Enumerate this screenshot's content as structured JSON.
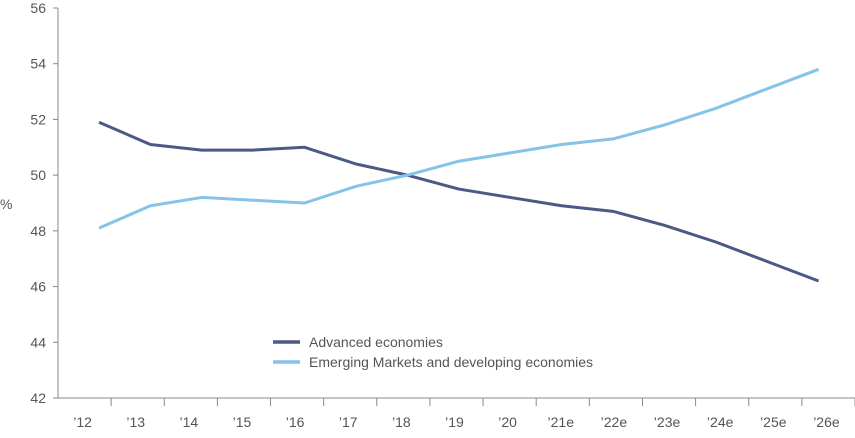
{
  "chart_data": {
    "type": "line",
    "title": "",
    "xlabel": "",
    "ylabel": "%",
    "ylim": [
      42,
      56
    ],
    "yticks": [
      42,
      44,
      46,
      48,
      50,
      52,
      54,
      56
    ],
    "grid": false,
    "legend_position": "bottom-center",
    "categories": [
      "’12",
      "’13",
      "’14",
      "’15",
      "’16",
      "’17",
      "’18",
      "’19",
      "’20",
      "’21e",
      "’22e",
      "’23e",
      "’24e",
      "’25e",
      "’26e"
    ],
    "series": [
      {
        "name": "Advanced economies",
        "color": "#4a5a85",
        "values": [
          51.9,
          51.1,
          50.9,
          50.9,
          51.0,
          50.4,
          50.0,
          49.5,
          49.2,
          48.9,
          48.7,
          48.2,
          47.6,
          46.9,
          46.2
        ]
      },
      {
        "name": "Emerging Markets and developing economies",
        "color": "#85c3e8",
        "values": [
          48.1,
          48.9,
          49.2,
          49.1,
          49.0,
          49.6,
          50.0,
          50.5,
          50.8,
          51.1,
          51.3,
          51.8,
          52.4,
          53.1,
          53.8
        ]
      }
    ]
  }
}
